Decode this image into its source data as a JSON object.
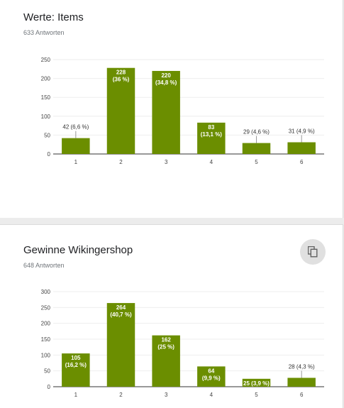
{
  "theme": {
    "bar_color": "#6b8e00",
    "grid_color": "#eeeeee",
    "axis_color": "#333333"
  },
  "cards": [
    {
      "title": "Werte: Items",
      "subtitle": "633 Antworten",
      "chart_data": {
        "type": "bar",
        "categories": [
          "1",
          "2",
          "3",
          "4",
          "5",
          "6"
        ],
        "values": [
          42,
          228,
          220,
          83,
          29,
          31
        ],
        "labels": [
          "42 (6,6 %)",
          "228 (36 %)",
          "220 (34,8 %)",
          "83 (13,1 %)",
          "29 (4,6 %)",
          "31 (4,9 %)"
        ],
        "label_lines": [
          [
            "42 (6,6 %)"
          ],
          [
            "228",
            "(36 %)"
          ],
          [
            "220",
            "(34,8 %)"
          ],
          [
            "83",
            "(13,1 %)"
          ],
          [
            "29 (4,6 %)"
          ],
          [
            "31 (4,9 %)"
          ]
        ],
        "label_inside": [
          false,
          true,
          true,
          true,
          false,
          false
        ],
        "yticks": [
          "0",
          "50",
          "100",
          "150",
          "200",
          "250"
        ],
        "ylim": [
          0,
          250
        ],
        "grid": true
      }
    },
    {
      "title": "Gewinne Wikingershop",
      "subtitle": "648 Antworten",
      "copy_icon": "copy-icon",
      "chart_data": {
        "type": "bar",
        "categories": [
          "1",
          "2",
          "3",
          "4",
          "5",
          "6"
        ],
        "values": [
          105,
          264,
          162,
          64,
          25,
          28
        ],
        "labels": [
          "105 (16,2 %)",
          "264 (40,7 %)",
          "162 (25 %)",
          "64 (9,9 %)",
          "25 (3,9 %)",
          "28 (4,3 %)"
        ],
        "label_lines": [
          [
            "105",
            "(16,2 %)"
          ],
          [
            "264",
            "(40,7 %)"
          ],
          [
            "162",
            "(25 %)"
          ],
          [
            "64",
            "(9,9 %)"
          ],
          [
            "25 (3,9 %)"
          ],
          [
            "28 (4,3 %)"
          ]
        ],
        "label_inside": [
          true,
          true,
          true,
          true,
          true,
          false
        ],
        "yticks": [
          "0",
          "50",
          "100",
          "150",
          "200",
          "250",
          "300"
        ],
        "ylim": [
          0,
          300
        ],
        "grid": true
      }
    }
  ]
}
